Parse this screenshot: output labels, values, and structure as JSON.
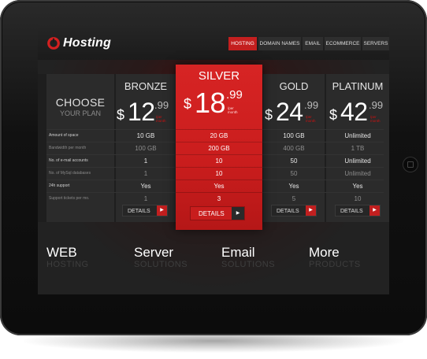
{
  "app": {
    "logo_text": "Hosting"
  },
  "nav": {
    "items": [
      "HOSTING",
      "DOMAIN NAMES",
      "EMAIL",
      "ECOMMERCE",
      "SERVERS"
    ],
    "active_index": 0
  },
  "pricing": {
    "choose_title": "CHOOSE",
    "choose_subtitle": "YOUR PLAN",
    "currency": "$",
    "per_month": "/per month",
    "plans": [
      {
        "name": "BRONZE",
        "price_main": "12",
        "price_dec": ".99"
      },
      {
        "name": "SILVER",
        "price_main": "18",
        "price_dec": ".99",
        "highlight": true
      },
      {
        "name": "GOLD",
        "price_main": "24",
        "price_dec": ".99"
      },
      {
        "name": "PLATINUM",
        "price_main": "42",
        "price_dec": ".99"
      }
    ],
    "features": [
      {
        "label": "Amount of space",
        "values": [
          "10 GB",
          "20 GB",
          "100 GB",
          "Unlimited"
        ]
      },
      {
        "label": "Bandwidth per month",
        "values": [
          "100 GB",
          "200 GB",
          "400 GB",
          "1 TB"
        ]
      },
      {
        "label": "No. of e-mail accounts",
        "values": [
          "1",
          "10",
          "50",
          "Unlimited"
        ]
      },
      {
        "label": "No. of MySql databases",
        "values": [
          "1",
          "10",
          "50",
          "Unlimited"
        ]
      },
      {
        "label": "24h support",
        "values": [
          "Yes",
          "Yes",
          "Yes",
          "Yes"
        ]
      },
      {
        "label": "Support tickets per mo.",
        "values": [
          "1",
          "3",
          "5",
          "10"
        ]
      }
    ],
    "details_label": "DETAILS"
  },
  "bottom": [
    {
      "title": "WEB",
      "subtitle": "HOSTING"
    },
    {
      "title": "Server",
      "subtitle": "SOLUTIONS"
    },
    {
      "title": "Email",
      "subtitle": "SOLUTIONS"
    },
    {
      "title": "More",
      "subtitle": "PRODUCTS"
    }
  ],
  "colors": {
    "accent": "#c41f1f",
    "background": "#222222"
  }
}
